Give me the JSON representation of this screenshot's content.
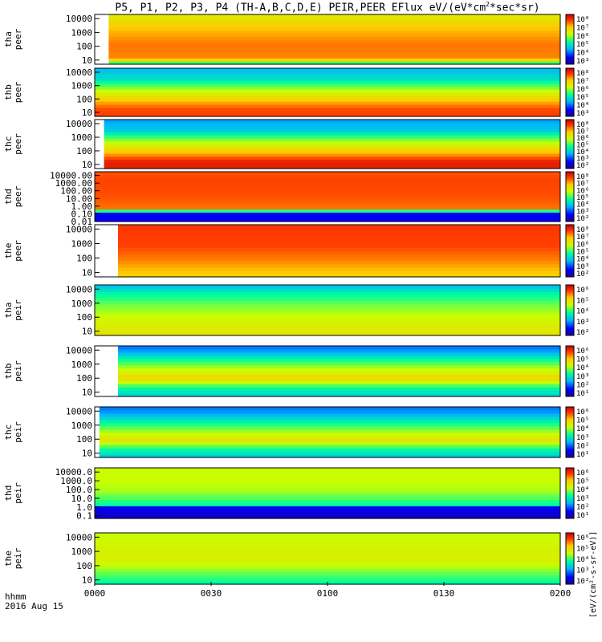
{
  "chart_data": {
    "type": "heatmap",
    "title": "P5, P1, P2, P3, P4 (TH-A,B,C,D,E) PEIR,PEER EFlux eV/(eV*cm²*sec*sr)",
    "title_parts": [
      "P5, P1, P2, P3, P4 (TH-A,B,C,D,E) PEIR,PEER EFlux eV/(eV*cm",
      "2",
      "*sec*sr)"
    ],
    "x_axis": {
      "label_line1": "hhmm",
      "label_line2": "2016 Aug 15",
      "ticks": [
        "0000",
        "0030",
        "0100",
        "0130",
        "0200"
      ],
      "range": [
        "00:00",
        "02:00"
      ]
    },
    "colorbar_label": "[eV/(cm²-s-sr-eV)]",
    "panels": [
      {
        "name": "tha peer",
        "ylabel": [
          "tha",
          "peer"
        ],
        "yticks": [
          "10000",
          "1000",
          "100",
          "10"
        ],
        "ylog": [
          5,
          20000
        ],
        "cbar": [
          "10⁸",
          "10⁷",
          "10⁶",
          "10⁵",
          "10⁴",
          "10³"
        ],
        "start": 0.03,
        "profile": [
          [
            0,
            4
          ],
          [
            0.1,
            6.5
          ],
          [
            0.4,
            6.6
          ],
          [
            0.7,
            6.1
          ],
          [
            1,
            5.3
          ]
        ]
      },
      {
        "name": "thb peer",
        "ylabel": [
          "thb",
          "peer"
        ],
        "yticks": [
          "10000",
          "1000",
          "100",
          "10"
        ],
        "ylog": [
          5,
          20000
        ],
        "cbar": [
          "10⁸",
          "10⁷",
          "10⁶",
          "10⁵",
          "10⁴",
          "10³"
        ],
        "start": 0.0,
        "profile": [
          [
            0,
            7
          ],
          [
            0.12,
            7
          ],
          [
            0.25,
            6.4
          ],
          [
            0.45,
            5.3
          ],
          [
            0.65,
            4.1
          ],
          [
            0.8,
            3.1
          ],
          [
            1,
            2.6
          ]
        ]
      },
      {
        "name": "thc peer",
        "ylabel": [
          "thc",
          "peer"
        ],
        "yticks": [
          "10000",
          "1000",
          "100",
          "10"
        ],
        "ylog": [
          5,
          20000
        ],
        "cbar": [
          "10⁸",
          "10⁷",
          "10⁶",
          "10⁵",
          "10⁴",
          "10³",
          "10²"
        ],
        "start": 0.02,
        "profile": [
          [
            0,
            7.5
          ],
          [
            0.12,
            7.5
          ],
          [
            0.3,
            6.2
          ],
          [
            0.5,
            5
          ],
          [
            0.65,
            4
          ],
          [
            0.8,
            2.8
          ],
          [
            1,
            2.3
          ]
        ]
      },
      {
        "name": "thd peer",
        "ylabel": [
          "thd",
          "peer"
        ],
        "yticks": [
          "10000.00",
          "1000.00",
          "100.00",
          "10.00",
          "1.00",
          "0.10",
          "0.01"
        ],
        "ylog": [
          0.01,
          30000
        ],
        "cbar": [
          "10⁸",
          "10⁷",
          "10⁶",
          "10⁵",
          "10⁴",
          "10³",
          "10²"
        ],
        "start": 0.0,
        "profile": [
          [
            0,
            1
          ],
          [
            0.18,
            1
          ],
          [
            0.22,
            6.6
          ],
          [
            0.5,
            6.9
          ],
          [
            0.85,
            7
          ],
          [
            1,
            6.9
          ]
        ]
      },
      {
        "name": "the peer",
        "ylabel": [
          "the",
          "peer"
        ],
        "yticks": [
          "10000",
          "1000",
          "100",
          "10"
        ],
        "ylog": [
          5,
          20000
        ],
        "cbar": [
          "10⁸",
          "10⁷",
          "10⁶",
          "10⁵",
          "10⁴",
          "10³",
          "10²"
        ],
        "start": 0.05,
        "profile": [
          [
            0,
            5.8
          ],
          [
            0.3,
            6.5
          ],
          [
            0.6,
            7
          ],
          [
            1,
            7.1
          ]
        ]
      },
      {
        "name": "tha peir",
        "ylabel": [
          "tha",
          "peir"
        ],
        "yticks": [
          "10000",
          "1000",
          "100",
          "10"
        ],
        "ylog": [
          5,
          20000
        ],
        "cbar": [
          "10⁶",
          "10⁵",
          "10⁴",
          "10³",
          "10²"
        ],
        "start": 0.0,
        "profile": [
          [
            0,
            5.4
          ],
          [
            0.3,
            5
          ],
          [
            0.6,
            4.3
          ],
          [
            0.85,
            3.5
          ],
          [
            1,
            2.7
          ]
        ]
      },
      {
        "name": "thb peir",
        "ylabel": [
          "thb",
          "peir"
        ],
        "yticks": [
          "10000",
          "1000",
          "100",
          "10"
        ],
        "ylog": [
          5,
          20000
        ],
        "cbar": [
          "10⁶",
          "10⁵",
          "10⁴",
          "10³",
          "10²",
          "10¹"
        ],
        "start": 0.05,
        "profile": [
          [
            0,
            3
          ],
          [
            0.15,
            3.5
          ],
          [
            0.35,
            5.7
          ],
          [
            0.55,
            4.8
          ],
          [
            0.75,
            3.6
          ],
          [
            0.9,
            2.4
          ],
          [
            1,
            2
          ]
        ]
      },
      {
        "name": "thc peir",
        "ylabel": [
          "thc",
          "peir"
        ],
        "yticks": [
          "10000",
          "1000",
          "100",
          "10"
        ],
        "ylog": [
          5,
          20000
        ],
        "cbar": [
          "10⁶",
          "10⁵",
          "10⁴",
          "10³",
          "10²",
          "10¹"
        ],
        "start": 0.01,
        "profile": [
          [
            0,
            2.8
          ],
          [
            0.15,
            3.6
          ],
          [
            0.35,
            5.5
          ],
          [
            0.55,
            4.4
          ],
          [
            0.75,
            3.3
          ],
          [
            0.9,
            2.3
          ],
          [
            1,
            2
          ]
        ]
      },
      {
        "name": "thd peir",
        "ylabel": [
          "thd",
          "peir"
        ],
        "yticks": [
          "10000.0",
          "1000.0",
          "100.0",
          "10.0",
          "1.0",
          "0.1"
        ],
        "ylog": [
          0.05,
          30000
        ],
        "cbar": [
          "10⁶",
          "10⁵",
          "10⁴",
          "10³",
          "10²",
          "10¹"
        ],
        "start": 0.0,
        "profile": [
          [
            0,
            0.5
          ],
          [
            0.2,
            1
          ],
          [
            0.25,
            3.5
          ],
          [
            0.55,
            4.6
          ],
          [
            0.85,
            4.9
          ],
          [
            1,
            4.8
          ]
        ]
      },
      {
        "name": "the peir",
        "ylabel": [
          "the",
          "peir"
        ],
        "yticks": [
          "10000",
          "1000",
          "100",
          "10"
        ],
        "ylog": [
          5,
          20000
        ],
        "cbar": [
          "10⁶",
          "10⁵",
          "10⁴",
          "10³",
          "10²"
        ],
        "start": 0.0,
        "profile": [
          [
            0,
            3.5
          ],
          [
            0.2,
            4.2
          ],
          [
            0.45,
            5.1
          ],
          [
            0.7,
            5.1
          ],
          [
            1,
            4.8
          ]
        ]
      }
    ]
  }
}
